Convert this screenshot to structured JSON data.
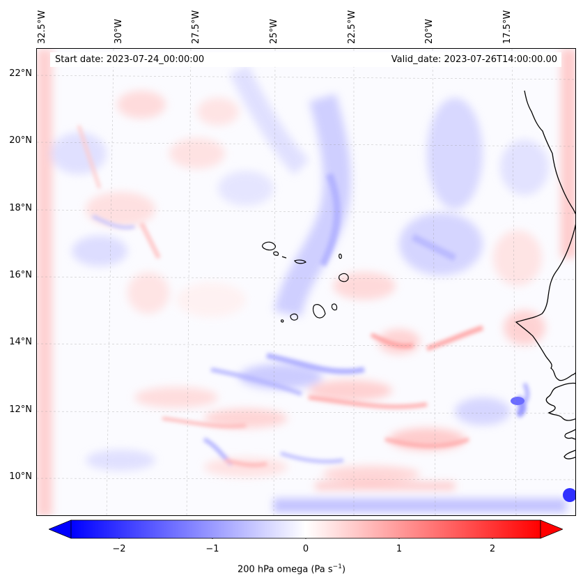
{
  "header": {
    "start_date": "Start date: 2023-07-24_00:00:00",
    "valid_date": "Valid_date: 2023-07-26T14:00:00.00"
  },
  "axes": {
    "longitude_labels": [
      "32.5°W",
      "30°W",
      "27.5°W",
      "25°W",
      "22.5°W",
      "20°W",
      "17.5°W"
    ],
    "longitude_values": [
      -32.5,
      -30,
      -27.5,
      -25,
      -22.5,
      -20,
      -17.5
    ],
    "latitude_labels": [
      "22°N",
      "20°N",
      "18°N",
      "16°N",
      "14°N",
      "12°N",
      "10°N"
    ],
    "latitude_values": [
      22,
      20,
      18,
      16,
      14,
      12,
      10
    ],
    "lon_range": [
      -32.5,
      -15.1
    ],
    "lat_range": [
      8.9,
      22.8
    ]
  },
  "colorbar": {
    "label": "200 hPa omega (Pa s",
    "label_exponent": "−1",
    "label_suffix": ")",
    "ticks": [
      "−2",
      "−1",
      "0",
      "1",
      "2"
    ],
    "tick_values": [
      -2,
      -1,
      0,
      1,
      2
    ],
    "range": [
      -2.6,
      2.6
    ],
    "colormap": "bwr",
    "extend": "both",
    "color_min": "#0000ff",
    "color_mid": "#ffffff",
    "color_max": "#ff0000"
  },
  "map": {
    "field": "200 hPa omega",
    "gridlines": true,
    "features": [
      "Cape Verde islands",
      "West African coastline"
    ]
  }
}
